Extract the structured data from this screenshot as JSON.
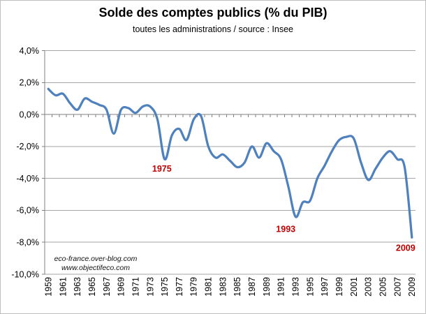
{
  "chart_data": {
    "type": "line",
    "title": "Solde des comptes publics (% du PIB)",
    "subtitle": "toutes les administrations / source : Insee",
    "x": [
      1959,
      1960,
      1961,
      1962,
      1963,
      1964,
      1965,
      1966,
      1967,
      1968,
      1969,
      1970,
      1971,
      1972,
      1973,
      1974,
      1975,
      1976,
      1977,
      1978,
      1979,
      1980,
      1981,
      1982,
      1983,
      1984,
      1985,
      1986,
      1987,
      1988,
      1989,
      1990,
      1991,
      1992,
      1993,
      1994,
      1995,
      1996,
      1997,
      1998,
      1999,
      2000,
      2001,
      2002,
      2003,
      2004,
      2005,
      2006,
      2007,
      2008,
      2009
    ],
    "values": [
      1.6,
      1.2,
      1.3,
      0.7,
      0.3,
      1.0,
      0.8,
      0.6,
      0.3,
      -1.2,
      0.3,
      0.4,
      0.1,
      0.5,
      0.5,
      -0.3,
      -2.8,
      -1.3,
      -0.9,
      -1.6,
      -0.3,
      -0.1,
      -2.0,
      -2.7,
      -2.5,
      -2.9,
      -3.3,
      -3.0,
      -2.0,
      -2.7,
      -1.8,
      -2.3,
      -2.8,
      -4.5,
      -6.4,
      -5.5,
      -5.4,
      -4.0,
      -3.2,
      -2.3,
      -1.6,
      -1.4,
      -1.5,
      -3.0,
      -4.1,
      -3.4,
      -2.7,
      -2.3,
      -2.8,
      -3.3,
      -7.7
    ],
    "ylim": [
      -10,
      4
    ],
    "y_ticks": [
      4,
      2,
      0,
      -2,
      -4,
      -6,
      -8,
      -10
    ],
    "y_tick_labels": [
      "4,0%",
      "2,0%",
      "0,0%",
      "-2,0%",
      "-4,0%",
      "-6,0%",
      "-8,0%",
      "-10,0%"
    ],
    "x_tick_labels": [
      "1959",
      "1961",
      "1963",
      "1965",
      "1967",
      "1969",
      "1971",
      "1973",
      "1975",
      "1977",
      "1979",
      "1981",
      "1983",
      "1985",
      "1987",
      "1989",
      "1991",
      "1993",
      "1995",
      "1997",
      "1999",
      "2001",
      "2003",
      "2005",
      "2007",
      "2009"
    ],
    "grid": true,
    "legend": false,
    "line_color": "#4F81BD",
    "gridline_color": "#A6A6A6",
    "axis_color": "#808080",
    "annotation_color": "#C00000",
    "annotations": [
      {
        "text": "1975",
        "year": 1975,
        "value": -2.8
      },
      {
        "text": "1993",
        "year": 1993,
        "value": -6.4
      },
      {
        "text": "2009",
        "year": 2009,
        "value": -7.7
      }
    ]
  },
  "watermark": {
    "line1": "eco-france.over-blog.com",
    "line2": "www.objectifeco.com"
  }
}
